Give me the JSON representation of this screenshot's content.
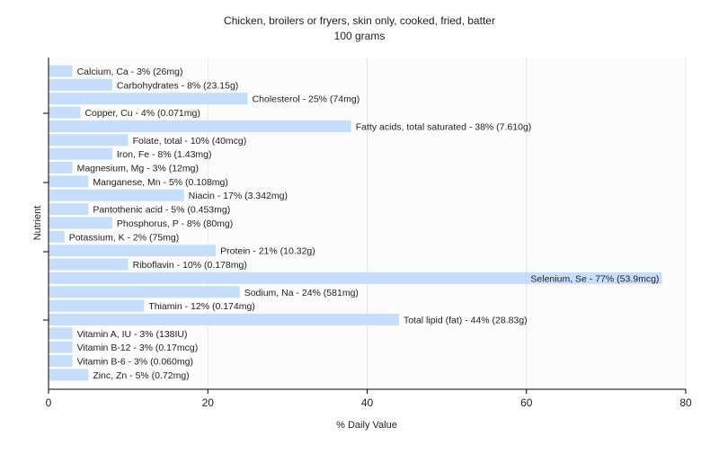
{
  "chart_data": {
    "type": "bar",
    "orientation": "horizontal",
    "title": "Chicken, broilers or fryers, skin only, cooked, fried, batter",
    "subtitle": "100 grams",
    "xlabel": "% Daily Value",
    "ylabel": "Nutrient",
    "xlim": [
      0,
      80
    ],
    "xticks": [
      0,
      20,
      40,
      60,
      80
    ],
    "grid": true,
    "colors": {
      "bar": "#c6defa",
      "grid": "#e8e8e8",
      "axis": "#000000",
      "plot_bg": "#fcfcfc"
    },
    "categories": [
      "Calcium, Ca",
      "Carbohydrates",
      "Cholesterol",
      "Copper, Cu",
      "Fatty acids, total saturated",
      "Folate, total",
      "Iron, Fe",
      "Magnesium, Mg",
      "Manganese, Mn",
      "Niacin",
      "Pantothenic acid",
      "Phosphorus, P",
      "Potassium, K",
      "Protein",
      "Riboflavin",
      "Selenium, Se",
      "Sodium, Na",
      "Thiamin",
      "Total lipid (fat)",
      "Vitamin A, IU",
      "Vitamin B-12",
      "Vitamin B-6",
      "Zinc, Zn"
    ],
    "values": [
      3,
      8,
      25,
      4,
      38,
      10,
      8,
      3,
      5,
      17,
      5,
      8,
      2,
      21,
      10,
      77,
      24,
      12,
      44,
      3,
      3,
      3,
      5
    ],
    "labels": [
      "Calcium, Ca - 3% (26mg)",
      "Carbohydrates - 8% (23.15g)",
      "Cholesterol - 25% (74mg)",
      "Copper, Cu - 4% (0.071mg)",
      "Fatty acids, total saturated - 38% (7.610g)",
      "Folate, total - 10% (40mcg)",
      "Iron, Fe - 8% (1.43mg)",
      "Magnesium, Mg - 3% (12mg)",
      "Manganese, Mn - 5% (0.108mg)",
      "Niacin - 17% (3.342mg)",
      "Pantothenic acid - 5% (0.453mg)",
      "Phosphorus, P - 8% (80mg)",
      "Potassium, K - 2% (75mg)",
      "Protein - 21% (10.32g)",
      "Riboflavin - 10% (0.178mg)",
      "Selenium, Se - 77% (53.9mcg)",
      "Sodium, Na - 24% (581mg)",
      "Thiamin - 12% (0.174mg)",
      "Total lipid (fat) - 44% (28.83g)",
      "Vitamin A, IU - 3% (138IU)",
      "Vitamin B-12 - 3% (0.17mcg)",
      "Vitamin B-6 - 3% (0.060mg)",
      "Zinc, Zn - 5% (0.72mg)"
    ]
  }
}
